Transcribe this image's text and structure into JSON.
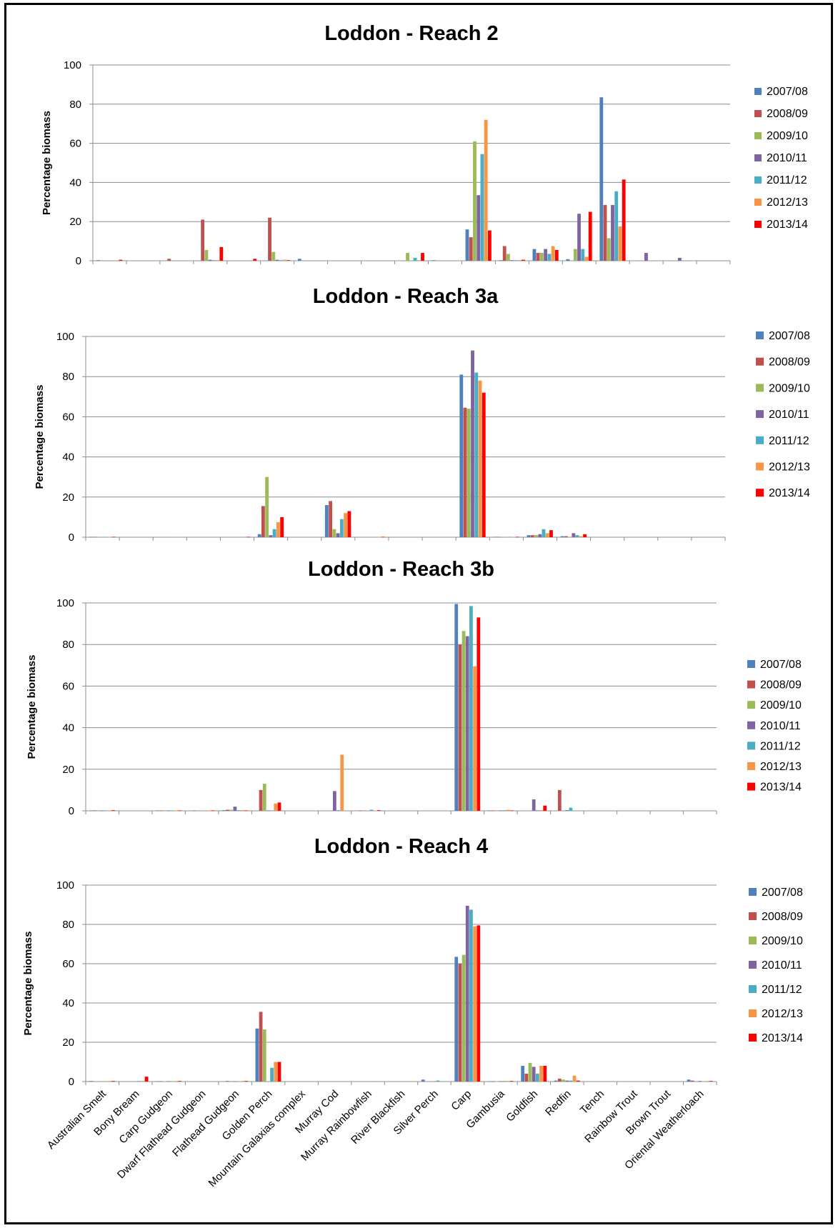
{
  "chart_data": [
    {
      "type": "bar",
      "title": "Loddon - Reach 2",
      "ylabel": "Percentage biomass",
      "ylim": [
        0,
        100
      ],
      "yticks": [
        "0",
        "20",
        "40",
        "60",
        "80",
        "100"
      ],
      "grid": true,
      "legend_position": "right",
      "categories": [
        "Australian Smelt",
        "Bony Bream",
        "Carp Gudgeon",
        "Dwarf Flathead Gudgeon",
        "Flathead Gudgeon",
        "Golden Perch",
        "Mountain Galaxias complex",
        "Murray Cod",
        "Murray Rainbowfish",
        "River Blackfish",
        "Silver Perch",
        "Carp",
        "Gambusia",
        "Goldfish",
        "Redfin",
        "Tench",
        "Rainbow Trout",
        "Brown Trout",
        "Oriental Weatherloach"
      ],
      "series": [
        {
          "name": "2007/08",
          "color": "#4F81BD",
          "values": [
            0.3,
            0,
            0,
            0,
            0,
            0,
            1,
            0,
            0,
            0,
            0.3,
            16,
            0.3,
            6,
            0.8,
            83.5,
            0,
            0,
            0
          ]
        },
        {
          "name": "2008/09",
          "color": "#C0504D",
          "values": [
            0,
            0,
            1,
            21,
            0,
            22,
            0,
            0,
            0,
            0,
            0,
            12,
            7.5,
            4,
            0,
            28.5,
            0,
            0,
            0
          ]
        },
        {
          "name": "2009/10",
          "color": "#9BBB59",
          "values": [
            0,
            0,
            0,
            5.5,
            0,
            4.5,
            0,
            0,
            0,
            4,
            0,
            61,
            3.5,
            4,
            6,
            11.5,
            0,
            0,
            0
          ]
        },
        {
          "name": "2010/11",
          "color": "#8064A2",
          "values": [
            0,
            0,
            0,
            0.5,
            0,
            0.5,
            0,
            0,
            0,
            0,
            0,
            33.5,
            0.3,
            6,
            24,
            28.5,
            4,
            1.5,
            0
          ]
        },
        {
          "name": "2011/12",
          "color": "#4BACC6",
          "values": [
            0,
            0,
            0,
            0.3,
            0,
            0.3,
            0,
            0,
            0,
            1.5,
            0,
            54.5,
            0.3,
            3.5,
            6,
            35.5,
            0,
            0,
            0
          ]
        },
        {
          "name": "2012/13",
          "color": "#F79646",
          "values": [
            0,
            0,
            0,
            0.3,
            0,
            0.5,
            0,
            0,
            0,
            0.3,
            0,
            72,
            0.3,
            7.5,
            2,
            17.5,
            0,
            0,
            0
          ]
        },
        {
          "name": "2013/14",
          "color": "#FF0000",
          "values": [
            0.5,
            0,
            0,
            7,
            1,
            0.3,
            0,
            0,
            0,
            4,
            0,
            15.5,
            0.5,
            5.5,
            25,
            41.5,
            0,
            0,
            0
          ]
        }
      ]
    },
    {
      "type": "bar",
      "title": "Loddon - Reach 3a",
      "ylabel": "Percentage biomass",
      "ylim": [
        0,
        100
      ],
      "yticks": [
        "0",
        "20",
        "40",
        "60",
        "80",
        "100"
      ],
      "grid": true,
      "legend_position": "right",
      "categories": [
        "Australian Smelt",
        "Bony Bream",
        "Carp Gudgeon",
        "Dwarf Flathead Gudgeon",
        "Flathead Gudgeon",
        "Golden Perch",
        "Mountain Galaxias complex",
        "Murray Cod",
        "Murray Rainbowfish",
        "River Blackfish",
        "Silver Perch",
        "Carp",
        "Gambusia",
        "Goldfish",
        "Redfin",
        "Tench",
        "Rainbow Trout",
        "Brown Trout",
        "Oriental Weatherloach"
      ],
      "series": [
        {
          "name": "2007/08",
          "color": "#4F81BD",
          "values": [
            0.2,
            0,
            0,
            0,
            0,
            1.5,
            0,
            16,
            0,
            0,
            0,
            81,
            0.2,
            1,
            0.5,
            0,
            0,
            0,
            0
          ]
        },
        {
          "name": "2008/09",
          "color": "#C0504D",
          "values": [
            0.2,
            0,
            0,
            0,
            0,
            15.5,
            0,
            18,
            0,
            0,
            0,
            64.5,
            0.2,
            1,
            0.5,
            0,
            0,
            0,
            0
          ]
        },
        {
          "name": "2009/10",
          "color": "#9BBB59",
          "values": [
            0,
            0,
            0,
            0,
            0,
            30,
            0,
            4,
            0,
            0,
            0,
            64,
            0,
            1,
            0,
            0,
            0,
            0,
            0
          ]
        },
        {
          "name": "2010/11",
          "color": "#8064A2",
          "values": [
            0,
            0,
            0,
            0,
            0,
            1,
            0,
            2,
            0,
            0,
            0,
            93,
            0,
            1.5,
            2,
            0,
            0,
            0,
            0
          ]
        },
        {
          "name": "2011/12",
          "color": "#4BACC6",
          "values": [
            0.2,
            0,
            0,
            0,
            0,
            4,
            0,
            9,
            0,
            0,
            0,
            82,
            0.2,
            4,
            1,
            0,
            0,
            0,
            0
          ]
        },
        {
          "name": "2012/13",
          "color": "#F79646",
          "values": [
            0.2,
            0,
            0.2,
            0,
            0,
            7.5,
            0,
            12,
            0.2,
            0,
            0,
            78,
            0.2,
            2,
            0.5,
            0,
            0,
            0,
            0
          ]
        },
        {
          "name": "2013/14",
          "color": "#FF0000",
          "values": [
            0.2,
            0,
            0,
            0,
            0.2,
            10,
            0,
            13,
            0.2,
            0,
            0,
            72,
            0.2,
            3.5,
            1.5,
            0,
            0,
            0,
            0
          ]
        }
      ]
    },
    {
      "type": "bar",
      "title": "Loddon - Reach 3b",
      "ylabel": "Percentage biomass",
      "ylim": [
        0,
        100
      ],
      "yticks": [
        "0",
        "20",
        "40",
        "60",
        "80",
        "100"
      ],
      "grid": true,
      "legend_position": "right",
      "categories": [
        "Australian Smelt",
        "Bony Bream",
        "Carp Gudgeon",
        "Dwarf Flathead Gudgeon",
        "Flathead Gudgeon",
        "Golden Perch",
        "Mountain Galaxias complex",
        "Murray Cod",
        "Murray Rainbowfish",
        "River Blackfish",
        "Silver Perch",
        "Carp",
        "Gambusia",
        "Goldfish",
        "Redfin",
        "Tench",
        "Rainbow Trout",
        "Brown Trout",
        "Oriental Weatherloach"
      ],
      "series": [
        {
          "name": "2007/08",
          "color": "#4F81BD",
          "values": [
            0.2,
            0,
            0.2,
            0,
            0.3,
            0,
            0,
            0,
            0,
            0,
            0,
            99.5,
            0.2,
            0,
            0,
            0,
            0,
            0,
            0
          ]
        },
        {
          "name": "2008/09",
          "color": "#C0504D",
          "values": [
            0.2,
            0,
            0.2,
            0.2,
            0.5,
            10,
            0,
            0,
            0.2,
            0,
            0,
            80,
            0.2,
            0,
            10,
            0,
            0,
            0,
            0
          ]
        },
        {
          "name": "2009/10",
          "color": "#9BBB59",
          "values": [
            0,
            0,
            0,
            0,
            0.5,
            13,
            0,
            0,
            0,
            0,
            0,
            86.5,
            0,
            0,
            0,
            0,
            0,
            0,
            0
          ]
        },
        {
          "name": "2010/11",
          "color": "#8064A2",
          "values": [
            0.2,
            0,
            0.2,
            0,
            2,
            0.2,
            0,
            9.5,
            0,
            0,
            0,
            84,
            0.2,
            5.5,
            0.3,
            0,
            0,
            0,
            0
          ]
        },
        {
          "name": "2011/12",
          "color": "#4BACC6",
          "values": [
            0.2,
            0,
            0.2,
            0,
            0.3,
            0.2,
            0,
            0.3,
            0.5,
            0,
            0,
            98.5,
            0.3,
            0.3,
            1.5,
            0,
            0,
            0,
            0
          ]
        },
        {
          "name": "2012/13",
          "color": "#F79646",
          "values": [
            0.2,
            0,
            0.2,
            0.2,
            0.3,
            3.5,
            0,
            27,
            0.2,
            0,
            0,
            69.5,
            0.5,
            0.3,
            0,
            0,
            0,
            0,
            0
          ]
        },
        {
          "name": "2013/14",
          "color": "#FF0000",
          "values": [
            0.3,
            0,
            0.2,
            0.2,
            0.2,
            4,
            0,
            0,
            0.3,
            0,
            0,
            93,
            0.2,
            2.5,
            0,
            0,
            0,
            0,
            0
          ]
        }
      ]
    },
    {
      "type": "bar",
      "title": "Loddon - Reach 4",
      "ylabel": "Percentage biomass",
      "ylim": [
        0,
        100
      ],
      "yticks": [
        "0",
        "20",
        "40",
        "60",
        "80",
        "100"
      ],
      "grid": true,
      "legend_position": "right",
      "categories": [
        "Australian Smelt",
        "Bony Bream",
        "Carp Gudgeon",
        "Dwarf Flathead Gudgeon",
        "Flathead Gudgeon",
        "Golden Perch",
        "Mountain Galaxias complex",
        "Murray Cod",
        "Murray Rainbowfish",
        "River Blackfish",
        "Silver Perch",
        "Carp",
        "Gambusia",
        "Goldfish",
        "Redfin",
        "Tench",
        "Rainbow Trout",
        "Brown Trout",
        "Oriental Weatherloach"
      ],
      "series": [
        {
          "name": "2007/08",
          "color": "#4F81BD",
          "values": [
            0.3,
            0,
            0.2,
            0,
            0,
            27,
            0,
            0,
            0,
            0,
            1,
            63.5,
            0.2,
            8,
            0.5,
            0,
            0,
            0,
            1
          ]
        },
        {
          "name": "2008/09",
          "color": "#C0504D",
          "values": [
            0,
            0,
            0.2,
            0,
            0.3,
            35.5,
            0,
            0,
            0,
            0,
            0,
            60,
            0.2,
            4,
            1.5,
            0,
            0,
            0,
            0.5
          ]
        },
        {
          "name": "2009/10",
          "color": "#9BBB59",
          "values": [
            0,
            0,
            0.2,
            0,
            0,
            26.5,
            0,
            0,
            0,
            0,
            0,
            64.5,
            0.2,
            9.5,
            1,
            0,
            0,
            0,
            0
          ]
        },
        {
          "name": "2010/11",
          "color": "#8064A2",
          "values": [
            0,
            0,
            0.2,
            0,
            0.2,
            0,
            0,
            0,
            0,
            0,
            0,
            89.5,
            0.2,
            7.5,
            0.5,
            0,
            0,
            0,
            0.3
          ]
        },
        {
          "name": "2011/12",
          "color": "#4BACC6",
          "values": [
            0,
            0.3,
            0.2,
            0,
            0,
            7,
            0,
            0,
            0,
            0,
            0.5,
            87.5,
            0.3,
            4,
            0.5,
            0,
            0,
            0,
            0
          ]
        },
        {
          "name": "2012/13",
          "color": "#F79646",
          "values": [
            0.3,
            0.3,
            0.3,
            0,
            0.3,
            10,
            0,
            0,
            0.3,
            0,
            0,
            79,
            0.3,
            8,
            3,
            0,
            0,
            0,
            0.3
          ]
        },
        {
          "name": "2013/14",
          "color": "#FF0000",
          "values": [
            0.3,
            2.5,
            0.3,
            0,
            0.3,
            10,
            0,
            0,
            0,
            0,
            0,
            79.5,
            0.3,
            8,
            0.5,
            0,
            0,
            0,
            0.3
          ]
        }
      ]
    }
  ]
}
